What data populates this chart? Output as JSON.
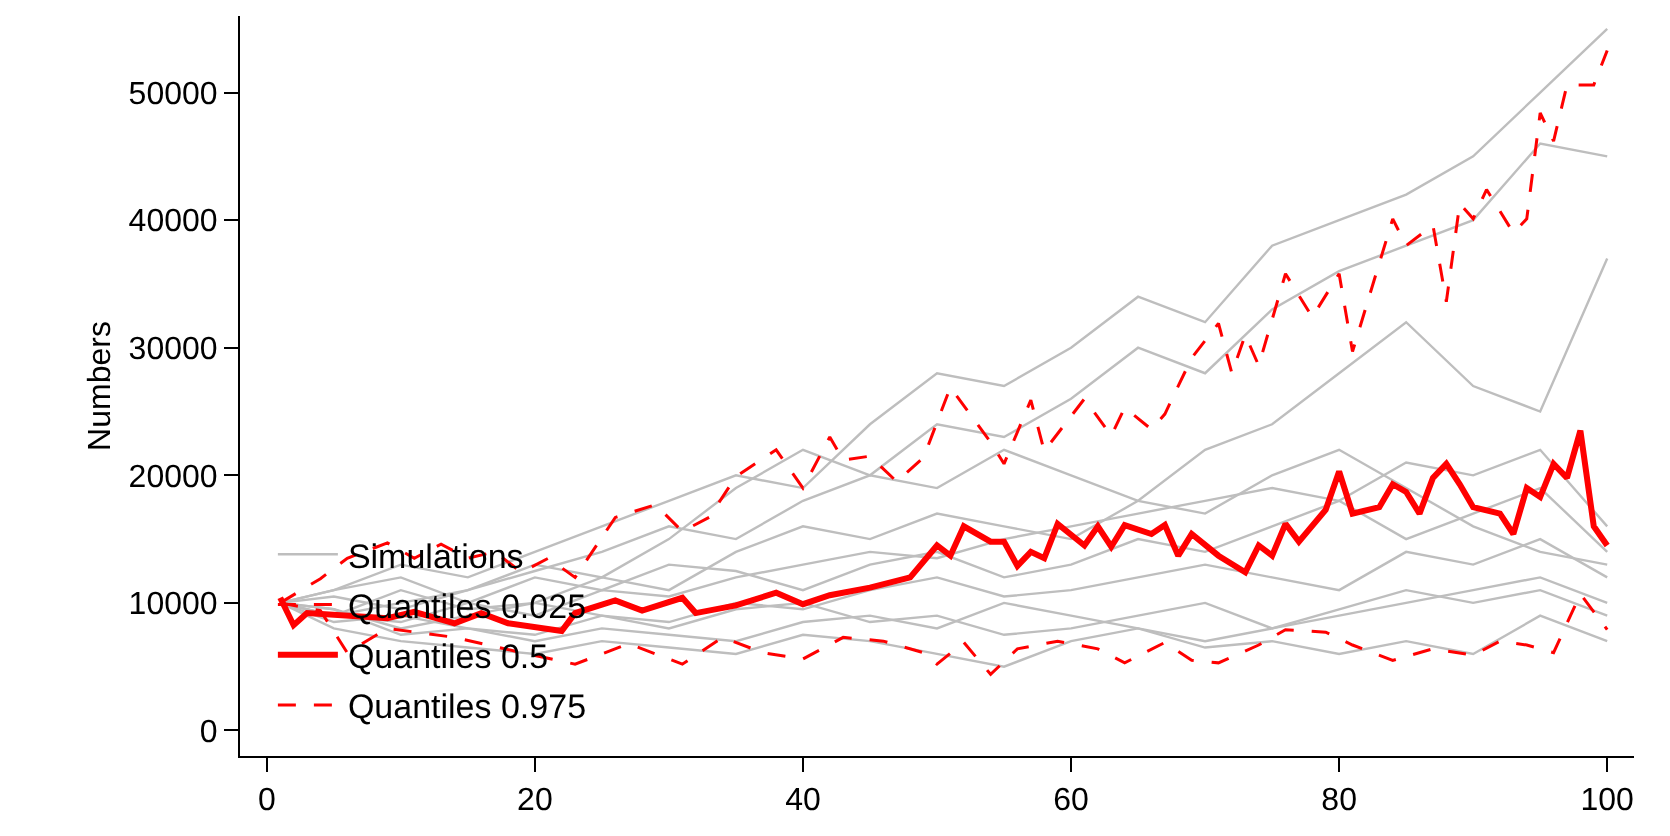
{
  "chart_data": {
    "type": "line",
    "ylabel": "Numbers",
    "xlim": [
      -2,
      102
    ],
    "xticks": [
      0,
      20,
      40,
      60,
      80,
      100
    ],
    "ylim": [
      -2000,
      56000
    ],
    "yticks": [
      0,
      10000,
      20000,
      30000,
      40000,
      50000
    ],
    "grid": false,
    "legend": "bottom left",
    "marker": "none",
    "x": [
      1,
      5,
      10,
      15,
      20,
      25,
      30,
      35,
      40,
      45,
      50,
      55,
      60,
      65,
      70,
      75,
      80,
      85,
      90,
      95,
      100
    ],
    "series": [
      {
        "name": "Simulations",
        "color": "#bebebe",
        "line_style": "solid",
        "values": [
          10000,
          11000,
          13000,
          12000,
          14000,
          16000,
          18000,
          20000,
          19000,
          24000,
          28000,
          27000,
          30000,
          34000,
          32000,
          38000,
          40000,
          42000,
          45000,
          50000,
          55000
        ]
      },
      {
        "color": "#bebebe",
        "line_style": "solid",
        "values": [
          10000,
          9000,
          10000,
          11000,
          13000,
          12000,
          15000,
          19000,
          22000,
          20000,
          24000,
          23000,
          26000,
          30000,
          28000,
          33000,
          36000,
          38000,
          40000,
          46000,
          45000
        ]
      },
      {
        "color": "#bebebe",
        "line_style": "solid",
        "values": [
          10000,
          9500,
          8000,
          9000,
          10000,
          12000,
          11000,
          14000,
          16000,
          15000,
          17000,
          16000,
          15000,
          18000,
          22000,
          24000,
          28000,
          32000,
          27000,
          25000,
          37000
        ]
      },
      {
        "color": "#bebebe",
        "line_style": "solid",
        "values": [
          10000,
          11000,
          12000,
          10000,
          9000,
          11000,
          10500,
          12000,
          13000,
          14000,
          13500,
          15000,
          16000,
          17000,
          18000,
          19000,
          18000,
          21000,
          20000,
          22000,
          16000
        ]
      },
      {
        "color": "#bebebe",
        "line_style": "solid",
        "values": [
          10000,
          9000,
          8500,
          10000,
          12000,
          11000,
          13000,
          12500,
          11000,
          13000,
          14000,
          12000,
          13000,
          15000,
          14000,
          16000,
          18000,
          15000,
          17000,
          19000,
          14000
        ]
      },
      {
        "color": "#bebebe",
        "line_style": "solid",
        "values": [
          10000,
          8500,
          9000,
          8000,
          7500,
          9000,
          8500,
          10000,
          9500,
          11000,
          12000,
          10500,
          11000,
          12000,
          13000,
          12000,
          11000,
          14000,
          13000,
          15000,
          12000
        ]
      },
      {
        "color": "#bebebe",
        "line_style": "solid",
        "values": [
          10000,
          9500,
          7500,
          8000,
          7000,
          8000,
          7500,
          7000,
          8500,
          9000,
          8000,
          10000,
          9000,
          8000,
          7000,
          8000,
          9000,
          10000,
          11000,
          12000,
          10000
        ]
      },
      {
        "color": "#bebebe",
        "line_style": "solid",
        "values": [
          10000,
          8000,
          7000,
          6500,
          6000,
          7000,
          6500,
          6000,
          7500,
          7000,
          6000,
          5000,
          7000,
          8000,
          6500,
          7000,
          6000,
          7000,
          6000,
          9000,
          7000
        ]
      },
      {
        "color": "#bebebe",
        "line_style": "solid",
        "values": [
          10000,
          10500,
          9500,
          11000,
          12500,
          14000,
          16000,
          15000,
          18000,
          20000,
          19000,
          22000,
          20000,
          18000,
          17000,
          20000,
          22000,
          19000,
          16000,
          14000,
          13000
        ]
      },
      {
        "color": "#bebebe",
        "line_style": "solid",
        "values": [
          10000,
          9000,
          11000,
          9500,
          10000,
          9000,
          8000,
          9500,
          10000,
          8500,
          9000,
          7500,
          8000,
          9000,
          10000,
          8000,
          9500,
          11000,
          10000,
          11000,
          9000
        ]
      },
      {
        "name": "Quantiles 0.025",
        "color": "#ff0000",
        "line_style": "dashed",
        "x": [
          1,
          4,
          6,
          9,
          14,
          19,
          23,
          27,
          31,
          34,
          37,
          40,
          43,
          46,
          49,
          50,
          52,
          54,
          56,
          59,
          62,
          64,
          67,
          69,
          71,
          74,
          76,
          79,
          81,
          84,
          87,
          90,
          92,
          94,
          96,
          98,
          100
        ],
        "values": [
          10000,
          9400,
          6100,
          8000,
          7300,
          6100,
          5200,
          6800,
          5200,
          7300,
          6100,
          5600,
          7300,
          7000,
          6100,
          5200,
          6900,
          4400,
          6400,
          7000,
          6400,
          5300,
          6900,
          5500,
          5300,
          6700,
          7900,
          7700,
          6700,
          5500,
          6400,
          5900,
          7000,
          6700,
          6100,
          10700,
          7900
        ]
      },
      {
        "name": "Quantiles 0.5",
        "color": "#ff0000",
        "line_style": "solid",
        "x": [
          1,
          2,
          3,
          9,
          11,
          14,
          16,
          18,
          22,
          23,
          26,
          28,
          31,
          32,
          35,
          38,
          40,
          42,
          45,
          48,
          50,
          51,
          52,
          54,
          55,
          56,
          57,
          58,
          59,
          61,
          62,
          63,
          64,
          66,
          67,
          68,
          69,
          71,
          73,
          74,
          75,
          76,
          77,
          79,
          80,
          81,
          83,
          84,
          85,
          86,
          87,
          88,
          89,
          90,
          92,
          93,
          94,
          95,
          96,
          97,
          98,
          99,
          100
        ],
        "values": [
          10400,
          8250,
          9200,
          8800,
          9300,
          8400,
          9200,
          8400,
          7800,
          9200,
          10200,
          9400,
          10400,
          9200,
          9800,
          10800,
          9900,
          10600,
          11200,
          12000,
          14500,
          13700,
          16000,
          14800,
          14800,
          12900,
          14000,
          13500,
          16200,
          14500,
          16000,
          14400,
          16100,
          15400,
          16100,
          13700,
          15400,
          13700,
          12400,
          14500,
          13700,
          16200,
          14800,
          17300,
          20300,
          17000,
          17500,
          19300,
          18700,
          17000,
          19800,
          20900,
          19300,
          17500,
          17000,
          15400,
          19000,
          18300,
          20900,
          19800,
          23500,
          16000,
          14500
        ]
      },
      {
        "name": "Quantiles 0.975",
        "color": "#ff0000",
        "line_style": "dashed",
        "x": [
          1,
          4,
          6,
          9,
          11,
          13,
          15,
          17,
          19,
          21,
          23,
          26,
          29,
          31,
          33,
          35,
          38,
          40,
          42,
          43,
          45,
          47,
          49,
          51,
          54,
          55,
          57,
          58,
          61,
          63,
          64,
          66,
          67,
          69,
          71,
          72,
          73,
          74,
          76,
          78,
          80,
          81,
          84,
          85,
          87,
          88,
          89,
          90,
          91,
          93,
          94,
          95,
          96,
          97,
          99,
          100
        ],
        "values": [
          10000,
          11900,
          13500,
          14700,
          13500,
          14600,
          13500,
          14000,
          12400,
          13500,
          12000,
          16700,
          17700,
          15600,
          16700,
          19900,
          22000,
          19000,
          23000,
          21200,
          21500,
          19500,
          21400,
          26900,
          22600,
          20900,
          25900,
          21900,
          26000,
          23100,
          25300,
          23600,
          24800,
          29200,
          31900,
          28000,
          31000,
          28600,
          35800,
          32400,
          35800,
          29700,
          40100,
          38000,
          39600,
          33600,
          41300,
          40100,
          42400,
          39000,
          40100,
          48400,
          46200,
          50600,
          50600,
          53300
        ]
      }
    ]
  }
}
